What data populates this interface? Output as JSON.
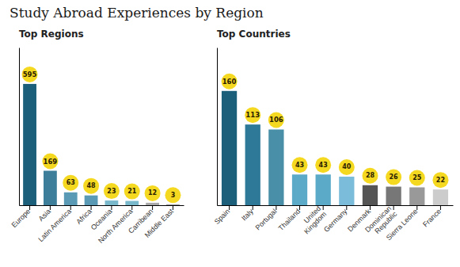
{
  "title": "Study Abroad Experiences by Region",
  "chart_data": [
    {
      "type": "bar",
      "title": "Top Regions",
      "categories": [
        "Europe",
        "Asia",
        "Latin America",
        "Africa",
        "Oceania",
        "North America",
        "Carribean",
        "Middle East"
      ],
      "values": [
        595,
        169,
        63,
        48,
        23,
        21,
        12,
        3
      ],
      "colors": [
        "#1c5f7a",
        "#3d7f9a",
        "#5a9ab5",
        "#5a9ab5",
        "#7ab8cc",
        "#7ab8cc",
        "#aaaaaa",
        "#777777"
      ],
      "ylim": [
        0,
        773.5
      ],
      "tick_labels": "x",
      "data_labels": true,
      "grid": false
    },
    {
      "type": "bar",
      "title": "Top Countries",
      "categories": [
        "Spain",
        "Italy",
        "Portugal",
        "Thailand",
        "United\nKingdom",
        "Germany",
        "Denmark",
        "Dominican\nRepublic",
        "Sierra Leone",
        "France"
      ],
      "values": [
        160,
        113,
        106,
        43,
        43,
        40,
        28,
        26,
        25,
        22
      ],
      "colors": [
        "#1c5f7a",
        "#2e7898",
        "#4a8fa8",
        "#5aaac8",
        "#5aaac8",
        "#7abcda",
        "#555555",
        "#777777",
        "#999999",
        "#cccccc"
      ],
      "ylim": [
        0,
        220.8
      ],
      "tick_labels": "x",
      "data_labels": true,
      "grid": false
    }
  ]
}
